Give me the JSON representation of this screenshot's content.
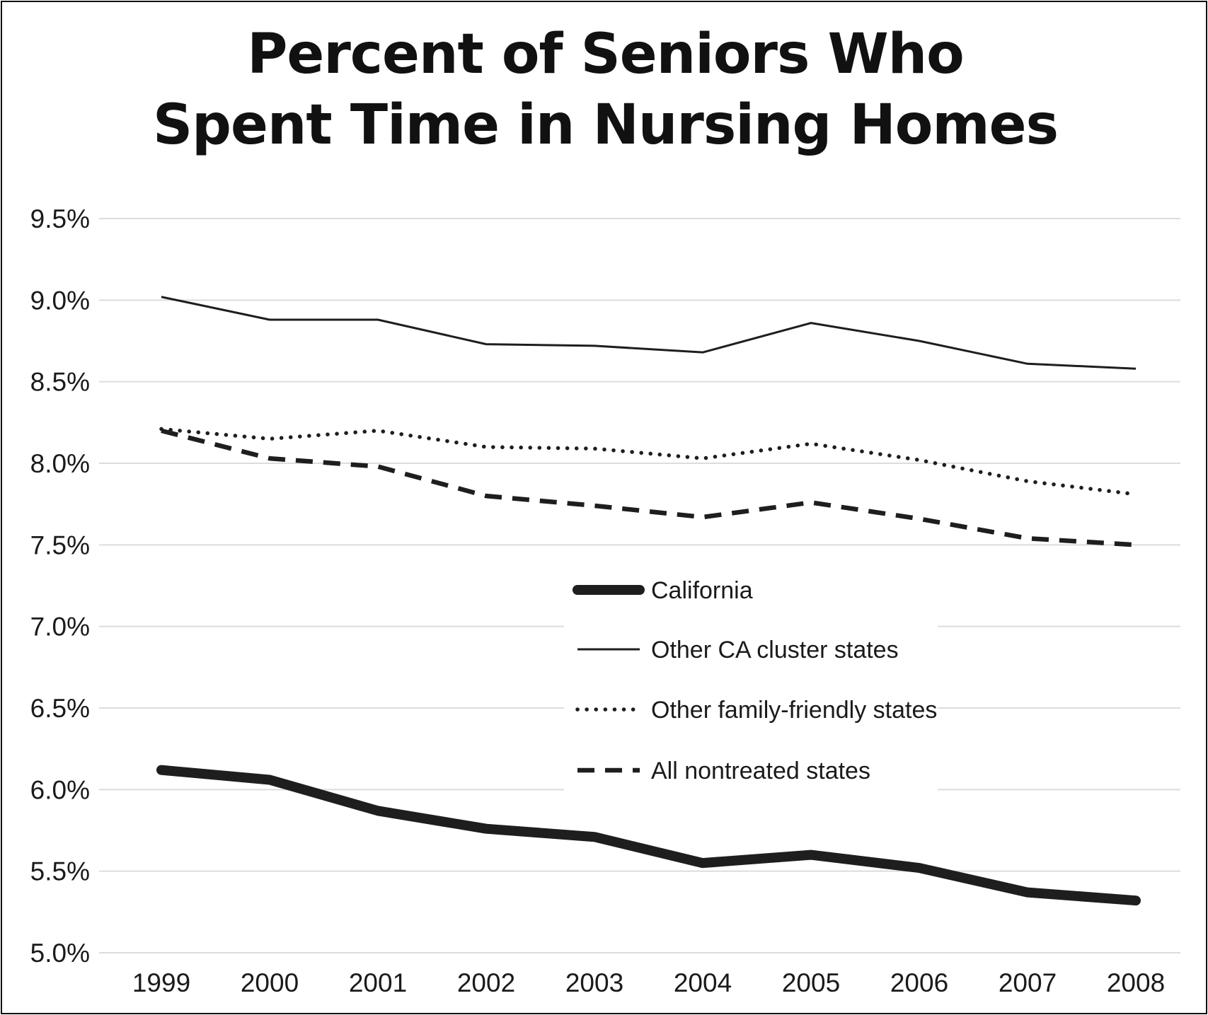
{
  "chart_data": {
    "type": "line",
    "title_lines": [
      "Percent of Seniors Who",
      "Spent Time in Nursing Homes"
    ],
    "xlabel": "",
    "ylabel": "",
    "x": [
      "1999",
      "2000",
      "2001",
      "2002",
      "2003",
      "2004",
      "2005",
      "2006",
      "2007",
      "2008"
    ],
    "ylim": [
      5.0,
      9.5
    ],
    "yticks": [
      5.0,
      5.5,
      6.0,
      6.5,
      7.0,
      7.5,
      8.0,
      8.5,
      9.0,
      9.5
    ],
    "ytick_labels": [
      "5.0%",
      "5.5%",
      "6.0%",
      "6.5%",
      "7.0%",
      "7.5%",
      "8.0%",
      "8.5%",
      "9.0%",
      "9.5%"
    ],
    "grid": "horizontal",
    "legend_position": "center-right",
    "series": [
      {
        "name": "California",
        "style": "thick-solid",
        "values": [
          6.12,
          6.06,
          5.87,
          5.76,
          5.71,
          5.55,
          5.6,
          5.52,
          5.37,
          5.32
        ]
      },
      {
        "name": "Other CA cluster states",
        "style": "thin-solid",
        "values": [
          9.02,
          8.88,
          8.88,
          8.73,
          8.72,
          8.68,
          8.86,
          8.75,
          8.61,
          8.58
        ]
      },
      {
        "name": "Other family-friendly states",
        "style": "dotted",
        "values": [
          8.21,
          8.15,
          8.2,
          8.1,
          8.09,
          8.03,
          8.12,
          8.02,
          7.89,
          7.81
        ]
      },
      {
        "name": "All nontreated states",
        "style": "dashed",
        "values": [
          8.2,
          8.03,
          7.98,
          7.8,
          7.74,
          7.67,
          7.76,
          7.66,
          7.54,
          7.5
        ]
      }
    ],
    "colors": {
      "line": "#1e1e1e",
      "grid": "#dcdcdc",
      "text": "#1a1a1a"
    }
  }
}
